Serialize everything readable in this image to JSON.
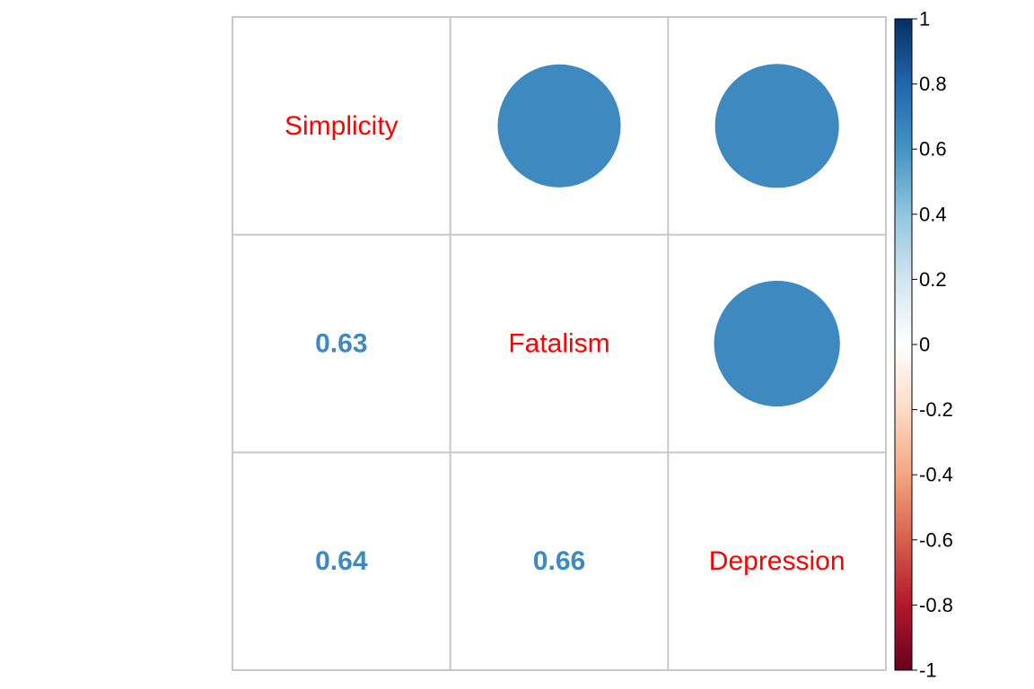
{
  "chart_data": {
    "type": "heatmap",
    "title": "",
    "variables": [
      "Simplicity",
      "Fatalism",
      "Depression"
    ],
    "matrix": [
      [
        1,
        0.63,
        0.64
      ],
      [
        0.63,
        1,
        0.66
      ],
      [
        0.64,
        0.66,
        1
      ]
    ],
    "lower_cells": [
      {
        "row": 1,
        "col": 0,
        "label": "0.63",
        "value": 0.63
      },
      {
        "row": 2,
        "col": 0,
        "label": "0.64",
        "value": 0.64
      },
      {
        "row": 2,
        "col": 1,
        "label": "0.66",
        "value": 0.66
      }
    ],
    "upper_cells": [
      {
        "row": 0,
        "col": 1,
        "value": 0.63
      },
      {
        "row": 0,
        "col": 2,
        "value": 0.64
      },
      {
        "row": 1,
        "col": 2,
        "value": 0.66
      }
    ],
    "upper_glyph": "circle",
    "lower_glyph": "number",
    "diagonal": "variable names",
    "colorbar": {
      "range": [
        -1,
        1
      ],
      "ticks": [
        "1",
        "0.8",
        "0.6",
        "0.4",
        "0.2",
        "0",
        "-0.2",
        "-0.4",
        "-0.6",
        "-0.8",
        "-1"
      ],
      "tick_values": [
        1,
        0.8,
        0.6,
        0.4,
        0.2,
        0,
        -0.2,
        -0.4,
        -0.6,
        -0.8,
        -1
      ]
    },
    "colors": {
      "positive": "#3e89bf",
      "label": "#ff0000",
      "grid": "#c8c8c8",
      "scale_low": "#67001f",
      "scale_mid": "#ffffff",
      "scale_high": "#053061"
    }
  }
}
